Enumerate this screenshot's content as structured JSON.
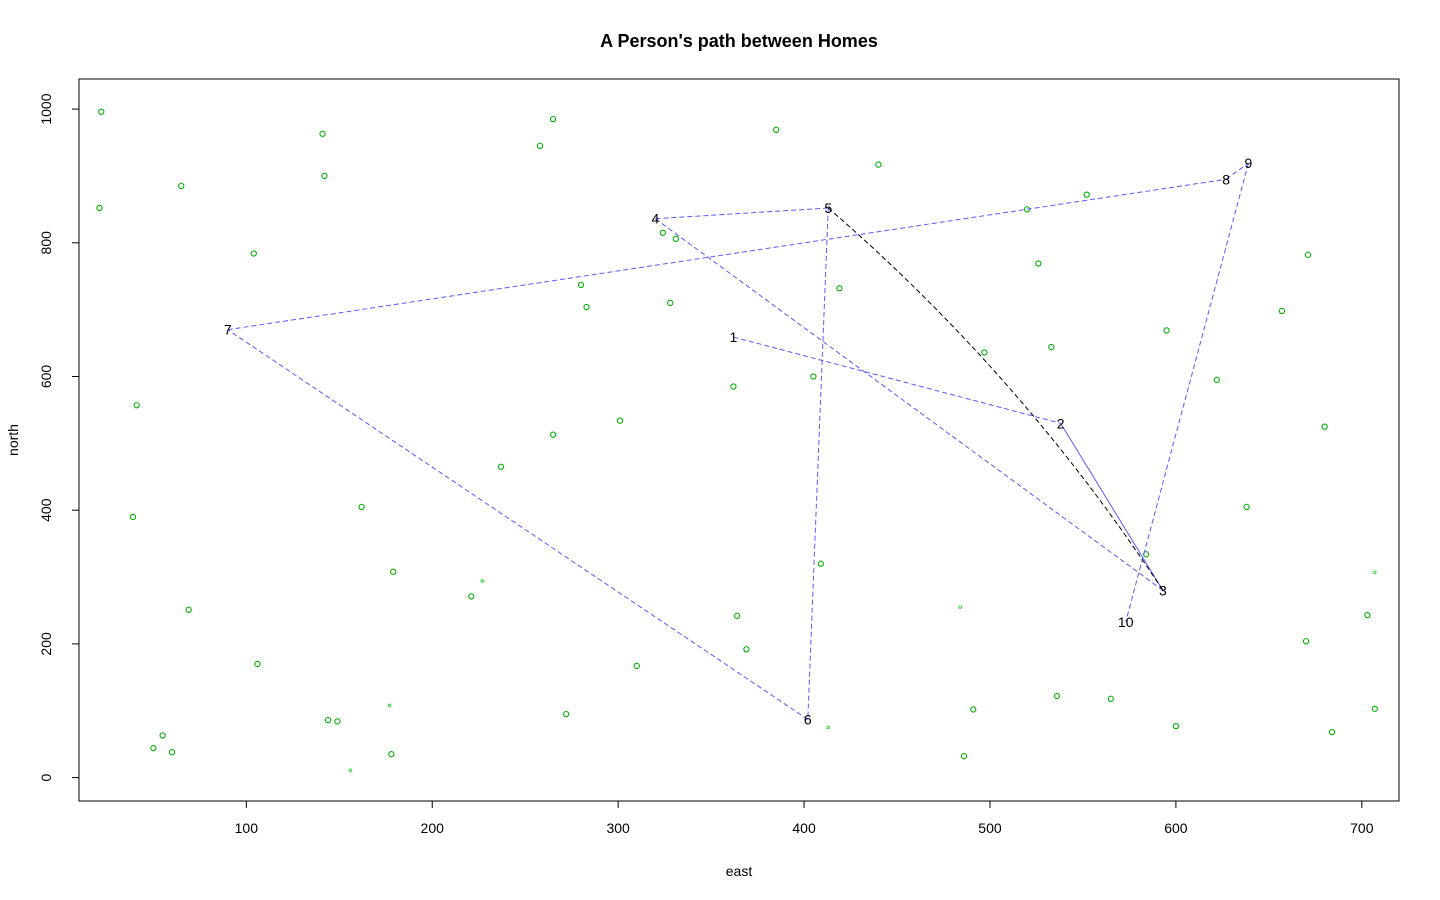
{
  "chart_data": {
    "type": "scatter",
    "title": "A Person's path between Homes",
    "xlabel": "east",
    "ylabel": "north",
    "xlim": [
      10,
      720
    ],
    "ylim": [
      -35,
      1045
    ],
    "xticks": [
      100,
      200,
      300,
      400,
      500,
      600,
      700
    ],
    "yticks": [
      0,
      200,
      400,
      600,
      800,
      1000
    ],
    "grid": false,
    "colors": {
      "homes": "#00b000",
      "path": "#5a5aff",
      "curve": "#000000"
    },
    "homes": [
      {
        "x": 22,
        "y": 996
      },
      {
        "x": 21,
        "y": 852
      },
      {
        "x": 65,
        "y": 885
      },
      {
        "x": 141,
        "y": 963
      },
      {
        "x": 142,
        "y": 900
      },
      {
        "x": 104,
        "y": 784
      },
      {
        "x": 265,
        "y": 985
      },
      {
        "x": 258,
        "y": 945
      },
      {
        "x": 385,
        "y": 969
      },
      {
        "x": 440,
        "y": 917
      },
      {
        "x": 552,
        "y": 872
      },
      {
        "x": 520,
        "y": 850
      },
      {
        "x": 324,
        "y": 815
      },
      {
        "x": 331,
        "y": 806
      },
      {
        "x": 280,
        "y": 737
      },
      {
        "x": 283,
        "y": 704
      },
      {
        "x": 328,
        "y": 710
      },
      {
        "x": 419,
        "y": 732
      },
      {
        "x": 526,
        "y": 769
      },
      {
        "x": 671,
        "y": 782
      },
      {
        "x": 657,
        "y": 698
      },
      {
        "x": 595,
        "y": 669
      },
      {
        "x": 533,
        "y": 644
      },
      {
        "x": 497,
        "y": 636
      },
      {
        "x": 622,
        "y": 595
      },
      {
        "x": 362,
        "y": 585
      },
      {
        "x": 405,
        "y": 600
      },
      {
        "x": 41,
        "y": 557
      },
      {
        "x": 301,
        "y": 534
      },
      {
        "x": 265,
        "y": 513
      },
      {
        "x": 680,
        "y": 525
      },
      {
        "x": 237,
        "y": 465
      },
      {
        "x": 162,
        "y": 405
      },
      {
        "x": 39,
        "y": 390
      },
      {
        "x": 638,
        "y": 405
      },
      {
        "x": 584,
        "y": 334
      },
      {
        "x": 409,
        "y": 320
      },
      {
        "x": 179,
        "y": 308
      },
      {
        "x": 221,
        "y": 271
      },
      {
        "x": 69,
        "y": 251
      },
      {
        "x": 364,
        "y": 242
      },
      {
        "x": 369,
        "y": 192
      },
      {
        "x": 703,
        "y": 243
      },
      {
        "x": 670,
        "y": 204
      },
      {
        "x": 106,
        "y": 170
      },
      {
        "x": 310,
        "y": 167
      },
      {
        "x": 536,
        "y": 122
      },
      {
        "x": 565,
        "y": 118
      },
      {
        "x": 491,
        "y": 102
      },
      {
        "x": 707,
        "y": 103
      },
      {
        "x": 272,
        "y": 95
      },
      {
        "x": 144,
        "y": 86
      },
      {
        "x": 149,
        "y": 84
      },
      {
        "x": 600,
        "y": 77
      },
      {
        "x": 684,
        "y": 68
      },
      {
        "x": 55,
        "y": 63
      },
      {
        "x": 50,
        "y": 44
      },
      {
        "x": 60,
        "y": 38
      },
      {
        "x": 178,
        "y": 35
      },
      {
        "x": 486,
        "y": 32
      }
    ],
    "homes_small": [
      {
        "x": 227,
        "y": 294
      },
      {
        "x": 484,
        "y": 255
      },
      {
        "x": 707,
        "y": 307
      },
      {
        "x": 177,
        "y": 108
      },
      {
        "x": 413,
        "y": 75
      },
      {
        "x": 156,
        "y": 11
      }
    ],
    "path": [
      {
        "label": "1",
        "x": 362,
        "y": 659
      },
      {
        "label": "2",
        "x": 538,
        "y": 530
      },
      {
        "label": "3",
        "x": 593,
        "y": 280
      },
      {
        "label": "4",
        "x": 320,
        "y": 836
      },
      {
        "label": "5",
        "x": 413,
        "y": 852
      },
      {
        "label": "6",
        "x": 402,
        "y": 87
      },
      {
        "label": "7",
        "x": 90,
        "y": 670
      },
      {
        "label": "8",
        "x": 627,
        "y": 895
      },
      {
        "label": "9",
        "x": 639,
        "y": 919
      },
      {
        "label": "10",
        "x": 573,
        "y": 233
      }
    ],
    "solid_segment": {
      "from": "2",
      "to": "3"
    },
    "curve_segment": {
      "from": "5",
      "to": "3",
      "bend": 0.07
    }
  }
}
